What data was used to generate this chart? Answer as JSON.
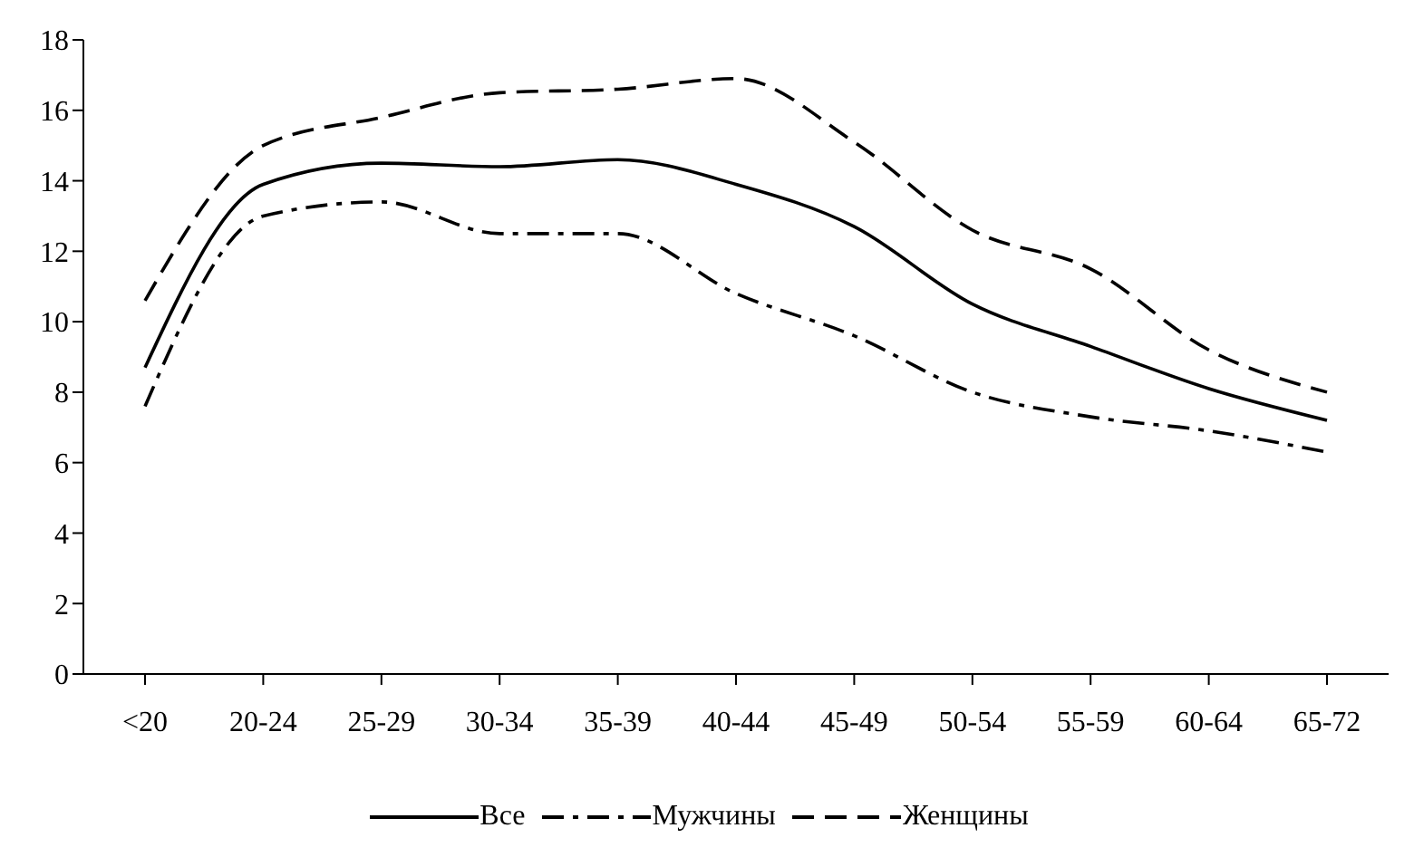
{
  "chart_data": {
    "type": "line",
    "categories": [
      "<20",
      "20-24",
      "25-29",
      "30-34",
      "35-39",
      "40-44",
      "45-49",
      "50-54",
      "55-59",
      "60-64",
      "65-72"
    ],
    "series": [
      {
        "name": "Все",
        "color": "#000000",
        "line_style": "solid",
        "values": [
          8.7,
          13.9,
          14.5,
          14.4,
          14.6,
          13.9,
          12.7,
          10.5,
          9.3,
          8.1,
          7.2
        ]
      },
      {
        "name": "Мужчины",
        "color": "#000000",
        "line_style": "dashdot",
        "values": [
          7.6,
          13.0,
          13.4,
          12.5,
          12.5,
          10.8,
          9.6,
          8.0,
          7.3,
          6.9,
          6.3
        ]
      },
      {
        "name": "Женщины",
        "color": "#000000",
        "line_style": "dashed",
        "values": [
          10.6,
          15.0,
          15.8,
          16.5,
          16.6,
          16.9,
          15.1,
          12.6,
          11.5,
          9.2,
          8.0
        ]
      }
    ],
    "ylim": [
      0,
      18
    ],
    "yticks": [
      0,
      2,
      4,
      6,
      8,
      10,
      12,
      14,
      16,
      18
    ],
    "grid": false,
    "legend": "bottom",
    "marker": "none"
  }
}
